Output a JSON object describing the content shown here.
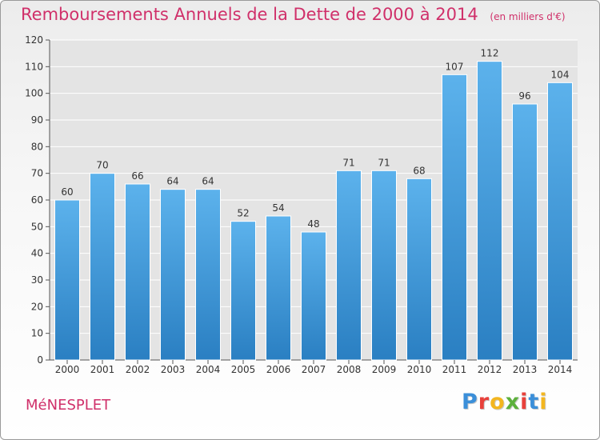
{
  "header": {
    "title": "Remboursements Annuels de la Dette de 2000 à 2014",
    "unit": "(en milliers d'€)"
  },
  "footer": {
    "commune": "MéNESPLET",
    "brand": "Proxiti"
  },
  "colors": {
    "title": "#d0306a",
    "bar_top": "#5cb2ec",
    "bar_bottom": "#2a7fc2",
    "logo": [
      "#3b8fd9",
      "#e8413b",
      "#f3b61f",
      "#5cb03c",
      "#e8413b",
      "#3b8fd9",
      "#f3b61f"
    ]
  },
  "chart_data": {
    "type": "bar",
    "title": "Remboursements Annuels de la Dette de 2000 à 2014",
    "xlabel": "",
    "ylabel": "",
    "categories": [
      "2000",
      "2001",
      "2002",
      "2003",
      "2004",
      "2005",
      "2006",
      "2007",
      "2008",
      "2009",
      "2010",
      "2011",
      "2012",
      "2013",
      "2014"
    ],
    "values": [
      60,
      70,
      66,
      64,
      64,
      52,
      54,
      48,
      71,
      71,
      68,
      107,
      112,
      96,
      104
    ],
    "ylim": [
      0,
      120
    ],
    "yticks": [
      0,
      10,
      20,
      30,
      40,
      50,
      60,
      70,
      80,
      90,
      100,
      110,
      120
    ],
    "grid": true
  }
}
